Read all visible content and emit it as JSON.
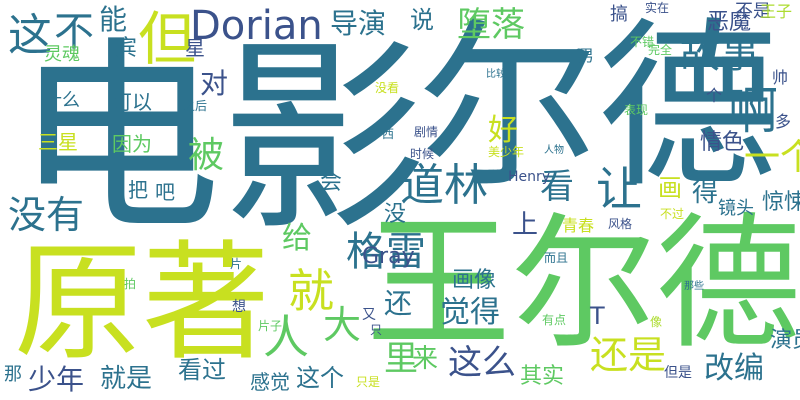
{
  "palette": {
    "dark_purple": "#440154",
    "deep_blue": "#3b528b",
    "teal_blue": "#2c728e",
    "teal": "#21918c",
    "green_teal": "#28ae80",
    "green": "#5ec962",
    "lime": "#addc30",
    "yellow": "#fde725"
  },
  "words": [
    {
      "text": "电影",
      "color": "#2c728e"
    },
    {
      "text": "尔德",
      "color": "#2c728e"
    },
    {
      "text": "王尔德",
      "color": "#5ec962"
    },
    {
      "text": "原著",
      "color": "#c8e020"
    },
    {
      "text": "道林",
      "color": "#2c728e"
    },
    {
      "text": "Dorian",
      "color": "#3b528b"
    },
    {
      "text": "但",
      "color": "#c8e020"
    },
    {
      "text": "这",
      "color": "#2c728e"
    },
    {
      "text": "不",
      "color": "#2c728e"
    },
    {
      "text": "能",
      "color": "#2c728e"
    },
    {
      "text": "导演",
      "color": "#2c728e"
    },
    {
      "text": "说",
      "color": "#2c728e"
    },
    {
      "text": "堕落",
      "color": "#5ec962"
    },
    {
      "text": "搞",
      "color": "#3b528b"
    },
    {
      "text": "实在",
      "color": "#3b528b"
    },
    {
      "text": "恶魔",
      "color": "#3b528b"
    },
    {
      "text": "不是",
      "color": "#3b528b"
    },
    {
      "text": "王子",
      "color": "#addc30"
    },
    {
      "text": "故事",
      "color": "#2c728e"
    },
    {
      "text": "啊",
      "color": "#2c728e"
    },
    {
      "text": "一个",
      "color": "#c8e020"
    },
    {
      "text": "让",
      "color": "#2c728e"
    },
    {
      "text": "没有",
      "color": "#2c728e"
    },
    {
      "text": "看",
      "color": "#2c728e"
    },
    {
      "text": "就",
      "color": "#c8e020"
    },
    {
      "text": "格雷",
      "color": "#2c728e"
    },
    {
      "text": "人",
      "color": "#5ec962"
    },
    {
      "text": "大",
      "color": "#5ec962"
    },
    {
      "text": "还",
      "color": "#2c728e"
    },
    {
      "text": "觉得",
      "color": "#2c728e"
    },
    {
      "text": "画像",
      "color": "#2c728e"
    },
    {
      "text": "这么",
      "color": "#3b528b"
    },
    {
      "text": "还是",
      "color": "#c8e020"
    },
    {
      "text": "改编",
      "color": "#2c728e"
    },
    {
      "text": "里",
      "color": "#5ec962"
    },
    {
      "text": "来",
      "color": "#5ec962"
    },
    {
      "text": "好",
      "color": "#c8e020"
    },
    {
      "text": "灵魂",
      "color": "#5ec962"
    },
    {
      "text": "宾",
      "color": "#2c728e"
    },
    {
      "text": "星",
      "color": "#3b528b"
    },
    {
      "text": "男",
      "color": "#2c728e"
    },
    {
      "text": "不错",
      "color": "#5ec962"
    },
    {
      "text": "完全",
      "color": "#5ec962"
    },
    {
      "text": "帅",
      "color": "#3b528b"
    },
    {
      "text": "对",
      "color": "#3b528b"
    },
    {
      "text": "什么",
      "color": "#2c728e"
    },
    {
      "text": "可以",
      "color": "#2c728e"
    },
    {
      "text": "三星",
      "color": "#c8e020"
    },
    {
      "text": "因为",
      "color": "#5ec962"
    },
    {
      "text": "被",
      "color": "#5ec962"
    },
    {
      "text": "把",
      "color": "#2c728e"
    },
    {
      "text": "吧",
      "color": "#2c728e"
    },
    {
      "text": "会",
      "color": "#2c728e"
    },
    {
      "text": "给",
      "color": "#5ec962"
    },
    {
      "text": "没",
      "color": "#2c728e"
    },
    {
      "text": "上",
      "color": "#3b528b"
    },
    {
      "text": "Gray",
      "color": "#3b528b"
    },
    {
      "text": "Henry",
      "color": "#3b528b"
    },
    {
      "text": "T",
      "color": "#3b528b"
    },
    {
      "text": "画",
      "color": "#c8e020"
    },
    {
      "text": "得",
      "color": "#2c728e"
    },
    {
      "text": "镜头",
      "color": "#2c728e"
    },
    {
      "text": "惊悚",
      "color": "#2c728e"
    },
    {
      "text": "情色",
      "color": "#3b528b"
    },
    {
      "text": "个",
      "color": "#3b528b"
    },
    {
      "text": "多",
      "color": "#3b528b"
    },
    {
      "text": "西",
      "color": "#2c728e"
    },
    {
      "text": "剧情",
      "color": "#3b528b"
    },
    {
      "text": "人物",
      "color": "#2c728e"
    },
    {
      "text": "时候",
      "color": "#3b528b"
    },
    {
      "text": "美少年",
      "color": "#c8e020"
    },
    {
      "text": "没看",
      "color": "#c8e020"
    },
    {
      "text": "之后",
      "color": "#2c728e"
    },
    {
      "text": "比较",
      "color": "#2c728e"
    },
    {
      "text": "表现",
      "color": "#5ec962"
    },
    {
      "text": "青春",
      "color": "#c8e020"
    },
    {
      "text": "风格",
      "color": "#3b528b"
    },
    {
      "text": "不过",
      "color": "#c8e020"
    },
    {
      "text": "而且",
      "color": "#2c728e"
    },
    {
      "text": "有点",
      "color": "#5ec962"
    },
    {
      "text": "像",
      "color": "#addc30"
    },
    {
      "text": "那些",
      "color": "#2c728e"
    },
    {
      "text": "片",
      "color": "#2c728e"
    },
    {
      "text": "拍",
      "color": "#5ec962"
    },
    {
      "text": "想",
      "color": "#3b528b"
    },
    {
      "text": "片子",
      "color": "#5ec962"
    },
    {
      "text": "又",
      "color": "#3b528b"
    },
    {
      "text": "只",
      "color": "#3b528b"
    },
    {
      "text": "只是",
      "color": "#c8e020"
    },
    {
      "text": "就是",
      "color": "#2c728e"
    },
    {
      "text": "看过",
      "color": "#2c728e"
    },
    {
      "text": "感觉",
      "color": "#2c728e"
    },
    {
      "text": "这个",
      "color": "#2c728e"
    },
    {
      "text": "少年",
      "color": "#3b528b"
    },
    {
      "text": "那",
      "color": "#2c728e"
    },
    {
      "text": "其实",
      "color": "#5ec962"
    },
    {
      "text": "但是",
      "color": "#3b528b"
    },
    {
      "text": "演员",
      "color": "#2c728e"
    }
  ]
}
